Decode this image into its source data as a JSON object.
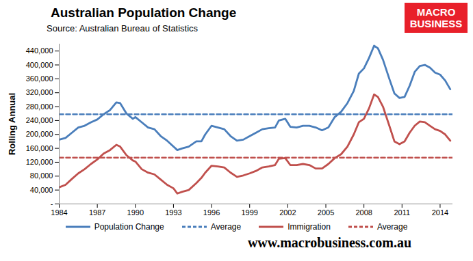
{
  "chart_data": {
    "type": "line",
    "title": "Australian Population Change",
    "subtitle": "Source: Australian Bureau of Statistics",
    "logo": "MACRO BUSINESS",
    "website": "www.macrobusiness.com.au",
    "ylabel": "Rolling Annual",
    "legend": "bottom",
    "grid": false,
    "xlim": [
      1984,
      2015
    ],
    "xticks": [
      1984,
      1987,
      1990,
      1993,
      1996,
      1999,
      2002,
      2005,
      2008,
      2011,
      2014
    ],
    "ylim": [
      0,
      460000
    ],
    "yticks": [
      {
        "value": 0,
        "label": "-"
      },
      {
        "value": 40000,
        "label": "40,000"
      },
      {
        "value": 80000,
        "label": "80,000"
      },
      {
        "value": 120000,
        "label": "120,000"
      },
      {
        "value": 160000,
        "label": "160,000"
      },
      {
        "value": 200000,
        "label": "200,000"
      },
      {
        "value": 240000,
        "label": "240,000"
      },
      {
        "value": 280000,
        "label": "280,000"
      },
      {
        "value": 320000,
        "label": "320,000"
      },
      {
        "value": 360000,
        "label": "360,000"
      },
      {
        "value": 400000,
        "label": "400,000"
      },
      {
        "value": 440000,
        "label": "440,000"
      }
    ],
    "x": [
      1984,
      1984.5,
      1985,
      1985.5,
      1986,
      1986.5,
      1987,
      1987.5,
      1988,
      1988.5,
      1988.8,
      1989.3,
      1989.8,
      1990,
      1990.5,
      1991,
      1991.5,
      1992,
      1992.5,
      1993,
      1993.3,
      1993.7,
      1994.2,
      1994.8,
      1995.2,
      1995.5,
      1996,
      1996.5,
      1997,
      1997.5,
      1998,
      1998.5,
      1999,
      1999.5,
      2000,
      2000.5,
      2001,
      2001.3,
      2001.8,
      2002.2,
      2002.7,
      2003.2,
      2003.7,
      2004.2,
      2004.7,
      2005.2,
      2005.7,
      2006.2,
      2006.7,
      2007.2,
      2007.6,
      2008,
      2008.4,
      2008.8,
      2009.1,
      2009.5,
      2010,
      2010.4,
      2010.8,
      2011.2,
      2011.6,
      2012,
      2012.4,
      2012.8,
      2013.2,
      2013.6,
      2014,
      2014.4,
      2014.8
    ],
    "series": [
      {
        "name": "Population Change",
        "color": "#4a7ebb",
        "line_style": "solid",
        "values": [
          185000,
          190000,
          205000,
          220000,
          225000,
          235000,
          243000,
          258000,
          270000,
          292000,
          290000,
          260000,
          245000,
          250000,
          235000,
          220000,
          215000,
          195000,
          182000,
          165000,
          155000,
          160000,
          165000,
          180000,
          180000,
          200000,
          225000,
          220000,
          215000,
          195000,
          182000,
          185000,
          195000,
          205000,
          215000,
          218000,
          220000,
          240000,
          245000,
          222000,
          220000,
          225000,
          225000,
          220000,
          212000,
          220000,
          250000,
          265000,
          290000,
          325000,
          375000,
          390000,
          420000,
          455000,
          448000,
          415000,
          360000,
          318000,
          305000,
          308000,
          340000,
          380000,
          397000,
          400000,
          392000,
          378000,
          372000,
          355000,
          330000
        ]
      },
      {
        "name": "Average",
        "color": "#4a7ebb",
        "line_style": "dashed",
        "x": [
          1984,
          2015
        ],
        "values": [
          258000,
          258000
        ]
      },
      {
        "name": "Immigration",
        "color": "#c0504d",
        "line_style": "solid",
        "values": [
          48000,
          55000,
          72000,
          88000,
          100000,
          115000,
          128000,
          145000,
          155000,
          170000,
          165000,
          140000,
          125000,
          122000,
          100000,
          90000,
          85000,
          70000,
          55000,
          45000,
          30000,
          35000,
          40000,
          60000,
          75000,
          90000,
          110000,
          108000,
          105000,
          90000,
          78000,
          82000,
          88000,
          95000,
          105000,
          108000,
          112000,
          130000,
          132000,
          112000,
          112000,
          115000,
          112000,
          102000,
          102000,
          115000,
          132000,
          143000,
          165000,
          200000,
          235000,
          245000,
          275000,
          315000,
          308000,
          280000,
          225000,
          180000,
          172000,
          180000,
          205000,
          225000,
          237000,
          235000,
          225000,
          215000,
          210000,
          200000,
          182000
        ]
      },
      {
        "name": "Average",
        "color": "#c0504d",
        "line_style": "dashed",
        "x": [
          1984,
          2015
        ],
        "values": [
          133000,
          133000
        ]
      }
    ]
  }
}
